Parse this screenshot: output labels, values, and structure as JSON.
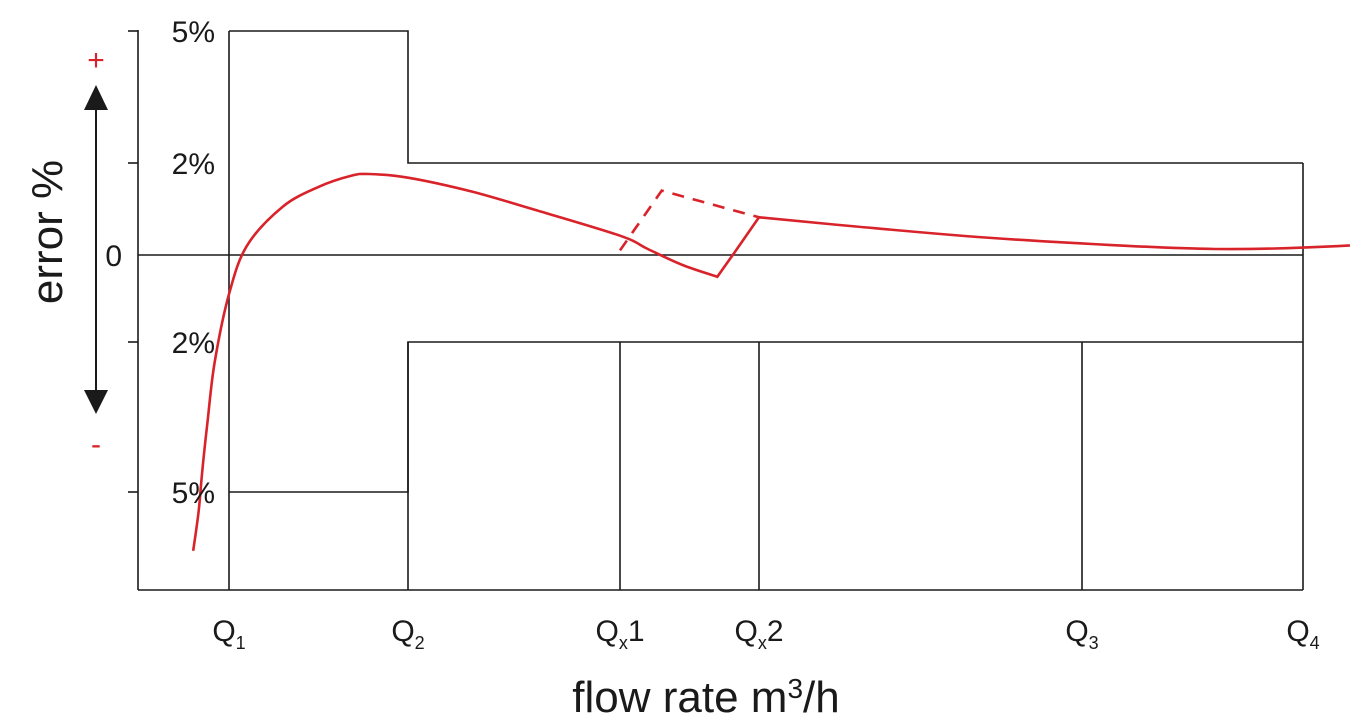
{
  "chart_data": {
    "type": "line",
    "xlabel_parts": {
      "base": "flow rate m",
      "sup": "3",
      "rest": "/h"
    },
    "ylabel": "error %",
    "y_sign_plus": "+",
    "y_sign_minus": "-",
    "y_ticks": [
      {
        "value": 5,
        "label": "5%"
      },
      {
        "value": 2,
        "label": "2%"
      },
      {
        "value": 0,
        "label": "0"
      },
      {
        "value": -2,
        "label": "2%"
      },
      {
        "value": -5,
        "label": "5%"
      }
    ],
    "x_ticks": [
      {
        "base": "Q",
        "sub": "1",
        "suffix": ""
      },
      {
        "base": "Q",
        "sub": "2",
        "suffix": ""
      },
      {
        "base": "Q",
        "sub": "x",
        "suffix": "1"
      },
      {
        "base": "Q",
        "sub": "x",
        "suffix": "2"
      },
      {
        "base": "Q",
        "sub": "3",
        "suffix": ""
      },
      {
        "base": "Q",
        "sub": "4",
        "suffix": ""
      }
    ],
    "upper_limit": [
      {
        "from": "Q1",
        "to": "Q2",
        "value": 5
      },
      {
        "from": "Q2",
        "to": "Q4",
        "value": 2
      }
    ],
    "lower_limit": [
      {
        "from": "Q1",
        "to": "Q2",
        "value": -5
      },
      {
        "from": "Q2",
        "to": "Q4",
        "value": -2
      }
    ],
    "series": [
      {
        "style": "solid",
        "points": [
          [
            -0.2,
            -6.2
          ],
          [
            -0.17,
            -5.4
          ],
          [
            -0.15,
            -4.6
          ],
          [
            -0.12,
            -3.6
          ],
          [
            -0.08,
            -2.4
          ],
          [
            0.0,
            -0.9
          ],
          [
            0.1,
            0.2
          ],
          [
            0.3,
            1.05
          ],
          [
            0.5,
            1.48
          ],
          [
            0.68,
            1.72
          ],
          [
            0.78,
            1.76
          ],
          [
            1.0,
            1.68
          ],
          [
            1.3,
            1.38
          ],
          [
            1.6,
            0.98
          ],
          [
            2.0,
            0.42
          ],
          [
            2.2,
            0.13
          ],
          [
            2.45,
            -0.23
          ],
          [
            2.7,
            -0.5
          ],
          [
            2.82,
            0.04
          ],
          [
            3.0,
            0.82
          ],
          [
            3.3,
            0.62
          ],
          [
            3.7,
            0.38
          ],
          [
            4.2,
            0.2
          ],
          [
            4.6,
            0.13
          ],
          [
            5.0,
            0.16
          ],
          [
            5.5,
            0.3
          ],
          [
            6.0,
            0.56
          ],
          [
            6.35,
            0.81
          ]
        ]
      },
      {
        "style": "dashed",
        "points": [
          [
            2.0,
            0.1
          ],
          [
            2.3,
            1.4
          ],
          [
            3.0,
            0.82
          ]
        ]
      }
    ],
    "grid": false,
    "legend": "none"
  }
}
